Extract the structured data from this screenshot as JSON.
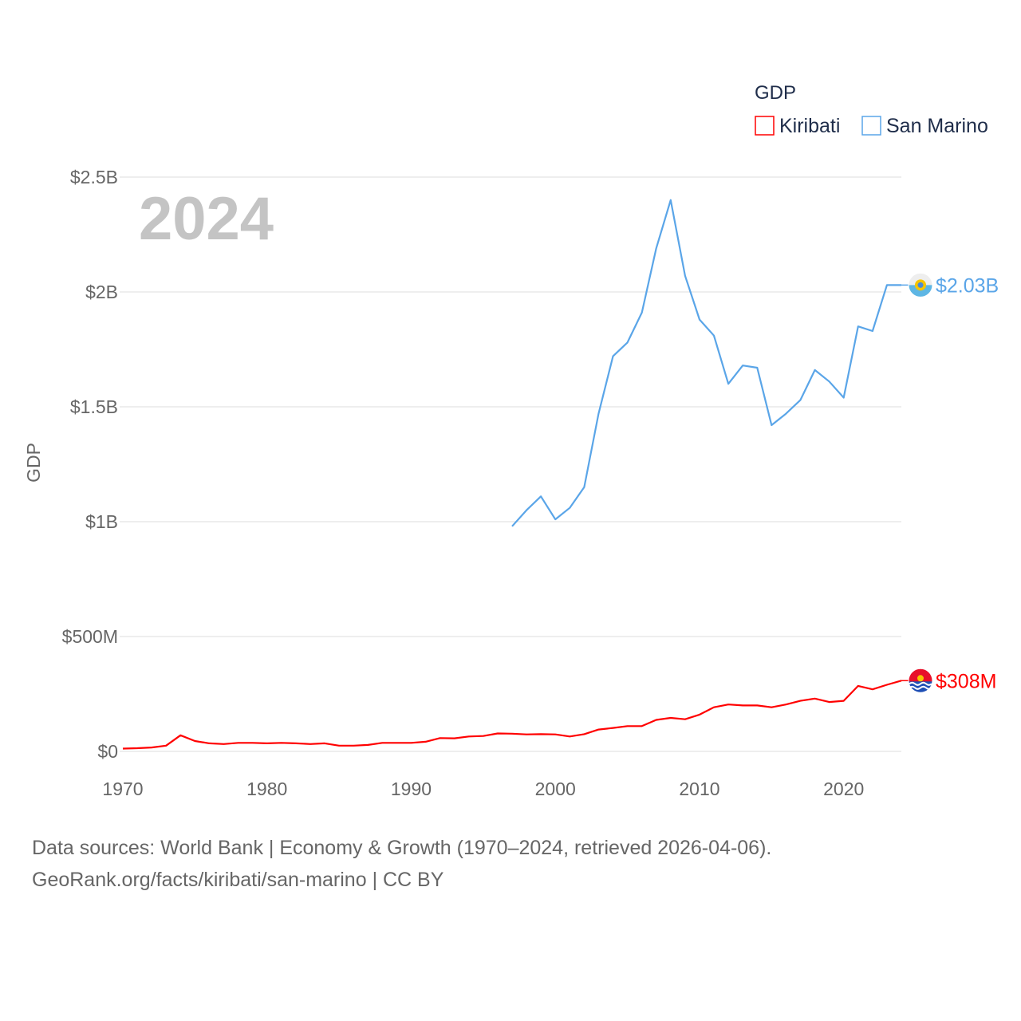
{
  "chart_data": {
    "type": "line",
    "title": "GDP",
    "year_label": "2024",
    "xlabel": "",
    "ylabel": "GDP",
    "xlim": [
      1970,
      2024
    ],
    "ylim": [
      0,
      2.5
    ],
    "y_unit": "billion USD",
    "grid": true,
    "legend_placement": "top-right",
    "x_ticks": [
      1970,
      1980,
      1990,
      2000,
      2010,
      2020
    ],
    "x_tick_labels": [
      "1970",
      "1980",
      "1990",
      "2000",
      "2010",
      "2020"
    ],
    "y_ticks": [
      0,
      0.5,
      1,
      1.5,
      2,
      2.5
    ],
    "y_tick_labels": [
      "$0",
      "$500M",
      "$1B",
      "$1.5B",
      "$2B",
      "$2.5B"
    ],
    "series": [
      {
        "name": "Kiribati",
        "color": "#ff0000",
        "end_label": "$308M",
        "x": [
          1970,
          1971,
          1972,
          1973,
          1974,
          1975,
          1976,
          1977,
          1978,
          1979,
          1980,
          1981,
          1982,
          1983,
          1984,
          1985,
          1986,
          1987,
          1988,
          1989,
          1990,
          1991,
          1992,
          1993,
          1994,
          1995,
          1996,
          1997,
          1998,
          1999,
          2000,
          2001,
          2002,
          2003,
          2004,
          2005,
          2006,
          2007,
          2008,
          2009,
          2010,
          2011,
          2012,
          2013,
          2014,
          2015,
          2016,
          2017,
          2018,
          2019,
          2020,
          2021,
          2022,
          2023,
          2024
        ],
        "values": [
          0.012,
          0.014,
          0.017,
          0.025,
          0.07,
          0.045,
          0.035,
          0.032,
          0.037,
          0.037,
          0.035,
          0.037,
          0.035,
          0.032,
          0.035,
          0.025,
          0.025,
          0.028,
          0.037,
          0.037,
          0.037,
          0.042,
          0.058,
          0.057,
          0.065,
          0.067,
          0.078,
          0.077,
          0.074,
          0.075,
          0.074,
          0.065,
          0.075,
          0.095,
          0.102,
          0.11,
          0.11,
          0.137,
          0.146,
          0.14,
          0.16,
          0.192,
          0.204,
          0.2,
          0.2,
          0.192,
          0.204,
          0.22,
          0.23,
          0.215,
          0.22,
          0.285,
          0.27,
          0.29,
          0.308
        ]
      },
      {
        "name": "San Marino",
        "color": "#5aa5e8",
        "end_label": "$2.03B",
        "x": [
          1997,
          1998,
          1999,
          2000,
          2001,
          2002,
          2003,
          2004,
          2005,
          2006,
          2007,
          2008,
          2009,
          2010,
          2011,
          2012,
          2013,
          2014,
          2015,
          2016,
          2017,
          2018,
          2019,
          2020,
          2021,
          2022,
          2023,
          2024
        ],
        "values": [
          0.98,
          1.05,
          1.11,
          1.01,
          1.06,
          1.15,
          1.47,
          1.72,
          1.78,
          1.91,
          2.19,
          2.4,
          2.07,
          1.88,
          1.81,
          1.6,
          1.68,
          1.67,
          1.42,
          1.47,
          1.53,
          1.66,
          1.61,
          1.54,
          1.85,
          1.83,
          2.03,
          2.03
        ]
      }
    ]
  },
  "footer": {
    "line1": "Data sources: World Bank | Economy & Growth (1970–2024, retrieved 2026-04-06).",
    "line2": "GeoRank.org/facts/kiribati/san-marino | CC BY"
  }
}
